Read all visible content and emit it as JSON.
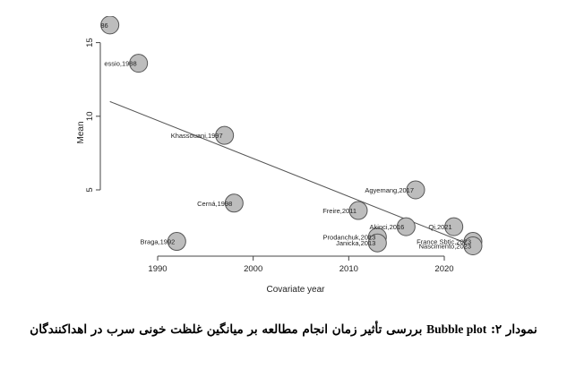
{
  "chart_data": {
    "type": "scatter",
    "title": "",
    "xlabel": "Covariate year",
    "ylabel": "Mean",
    "xlim": [
      1984,
      2024.5
    ],
    "ylim": [
      0.5,
      16.8
    ],
    "x_ticks": [
      1990,
      2000,
      2010,
      2020
    ],
    "y_ticks": [
      5,
      10,
      15
    ],
    "grid": false,
    "points": [
      {
        "label": "86",
        "x": 1985,
        "y": 16.2,
        "size": 1
      },
      {
        "label": "essio,1988",
        "x": 1988,
        "y": 13.6,
        "size": 1
      },
      {
        "label": "Khassouani,1997",
        "x": 1997,
        "y": 8.7,
        "size": 1
      },
      {
        "label": "Cerná,1998",
        "x": 1998,
        "y": 4.1,
        "size": 1
      },
      {
        "label": "Braga,1992",
        "x": 1992,
        "y": 1.5,
        "size": 1
      },
      {
        "label": "Freire,2011",
        "x": 2011,
        "y": 3.6,
        "size": 1
      },
      {
        "label": "Agyemang,2017",
        "x": 2017,
        "y": 5.0,
        "size": 1
      },
      {
        "label": "Akinci,2016",
        "x": 2016,
        "y": 2.5,
        "size": 1
      },
      {
        "label": "Prodanchuk,2013",
        "x": 2013,
        "y": 1.8,
        "size": 1
      },
      {
        "label": "Janicka,2013",
        "x": 2013,
        "y": 1.4,
        "size": 1
      },
      {
        "label": "Qi,2021",
        "x": 2021,
        "y": 2.5,
        "size": 1
      },
      {
        "label": "France Sbtic,2023",
        "x": 2023,
        "y": 1.5,
        "size": 1
      },
      {
        "label": "Nascimento,2023",
        "x": 2023,
        "y": 1.2,
        "size": 1
      }
    ],
    "regression_line": {
      "x": [
        1985,
        2023
      ],
      "y": [
        11.0,
        1.2
      ]
    },
    "colors": {
      "bubble_fill": "#bdbdbd",
      "bubble_stroke": "#555555",
      "line": "#555555",
      "axis": "#444444"
    }
  },
  "caption": {
    "prefix": "نمودار ۲:",
    "english": "Bubble plot",
    "text": "بررسی تأثیر زمان انجام مطالعه بر میانگین غلظت خونی سرب در اهداکنندگان"
  }
}
